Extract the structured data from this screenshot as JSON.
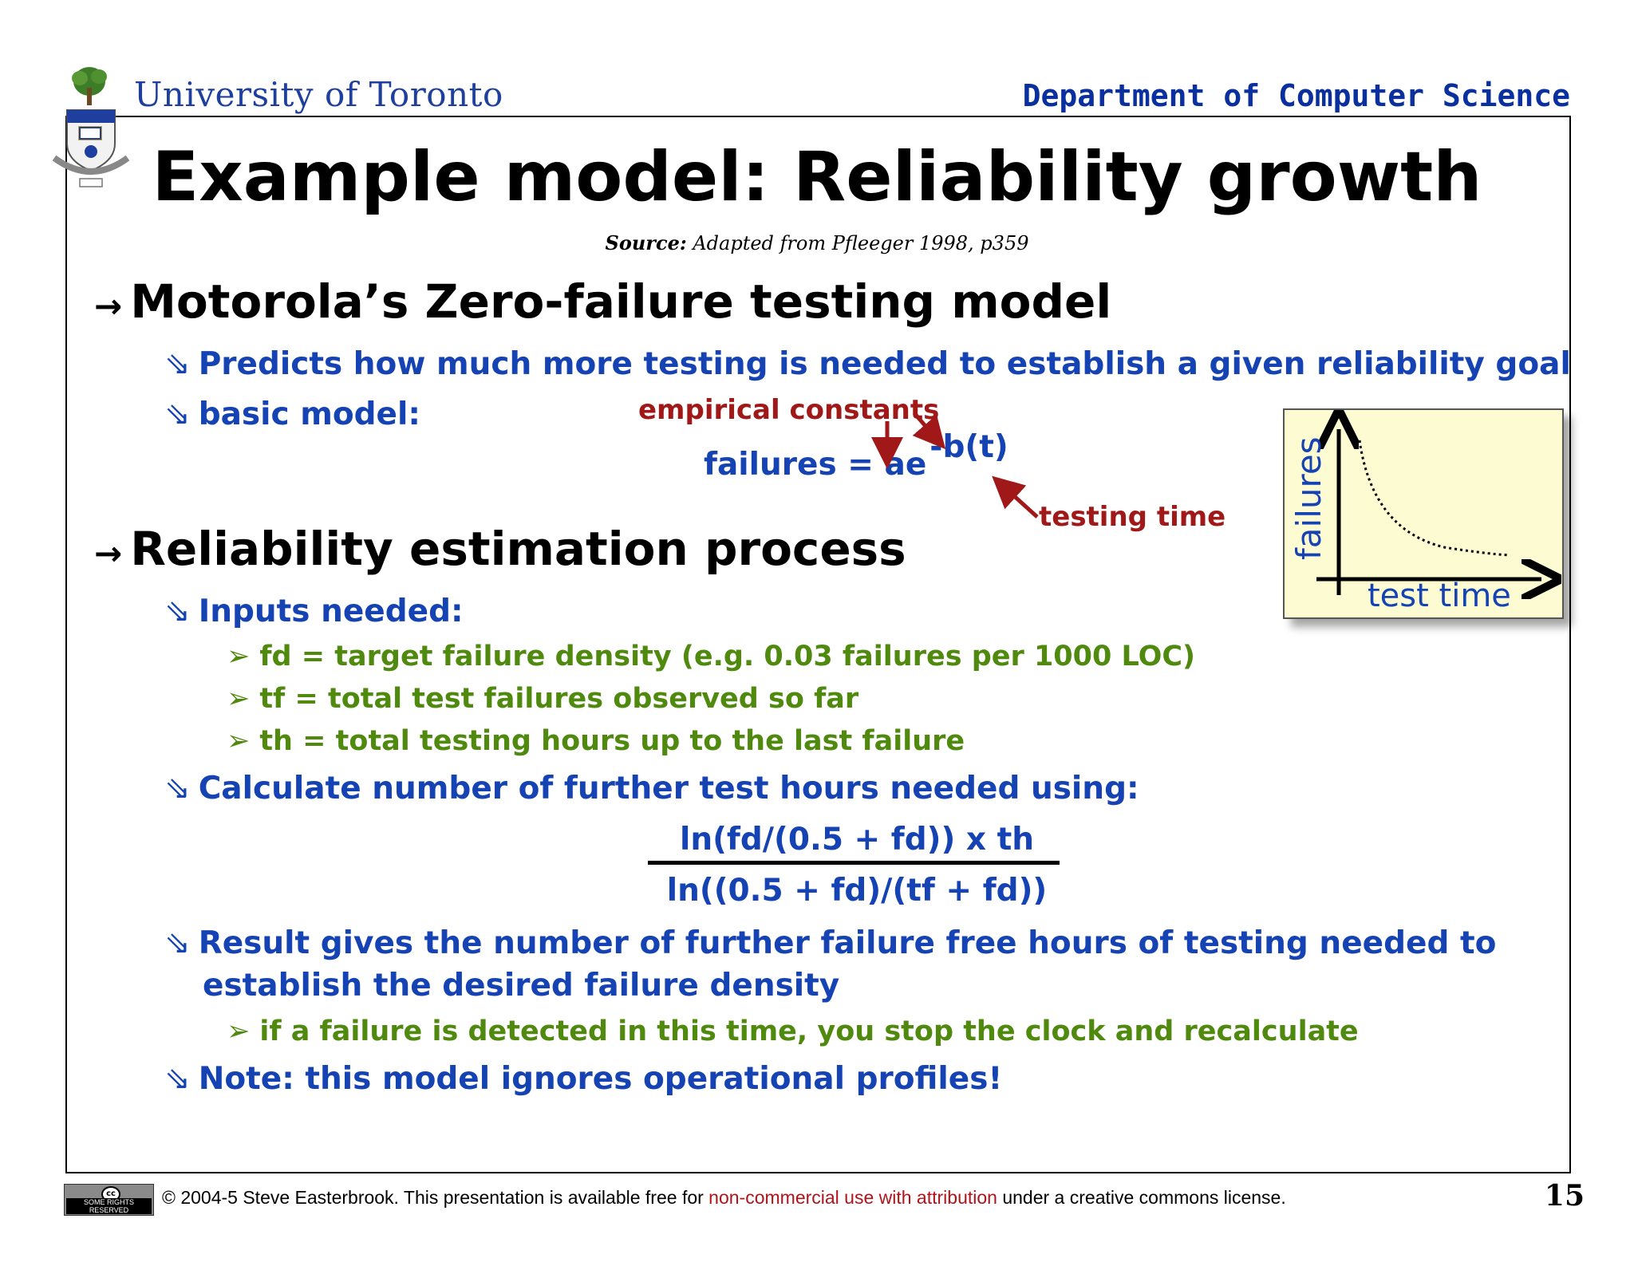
{
  "header": {
    "university": "University of Toronto",
    "department": "Department of Computer Science"
  },
  "slide": {
    "title": "Example model: Reliability growth",
    "source_label": "Source:",
    "source_text": "Adapted from Pfleeger 1998, p359",
    "section1": {
      "heading": "Motorola’s Zero-failure testing model",
      "bullets": [
        "Predicts how much more testing is needed to establish a given reliability goal",
        "basic model:"
      ]
    },
    "model": {
      "annotation_constants": "empirical constants",
      "annotation_time": "testing time",
      "formula_lhs": "failures = ae",
      "formula_exp": "-b(t)"
    },
    "graph": {
      "ylabel": "failures",
      "xlabel": "test time"
    },
    "section2": {
      "heading": "Reliability estimation process",
      "inputs_label": "Inputs needed:",
      "inputs": [
        "fd = target failure density (e.g. 0.03 failures per 1000 LOC)",
        "tf = total test failures observed so far",
        "th = total testing hours up to the last failure"
      ],
      "calc_label": "Calculate number of further test hours needed using:",
      "numerator": "ln(fd/(0.5 + fd)) x th",
      "denominator": "ln((0.5 + fd)/(tf + fd))",
      "result_line1": "Result gives the number of further failure free hours of testing needed to",
      "result_line2": "establish the desired failure density",
      "result_sub": "if a failure is detected in this time, you stop the clock and recalculate",
      "note": "Note: this model ignores operational profiles!"
    }
  },
  "footer": {
    "cc_badge": "SOME RIGHTS RESERVED",
    "text_before": "© 2004-5 Steve Easterbrook. This presentation is available free for ",
    "text_highlight": "non-commercial use with attribution",
    "text_after": " under a creative commons license.",
    "page_number": "15"
  },
  "colors": {
    "heading_blue": "#1543b3",
    "green": "#4f8a0e",
    "annotation_red": "#a01818",
    "graph_bg": "#fdfbd1"
  },
  "icons": {
    "section_bullet": "arrow-right-icon",
    "level2_bullet": "outline-arrow-icon",
    "level3_bullet": "chevron-bullet-icon"
  }
}
